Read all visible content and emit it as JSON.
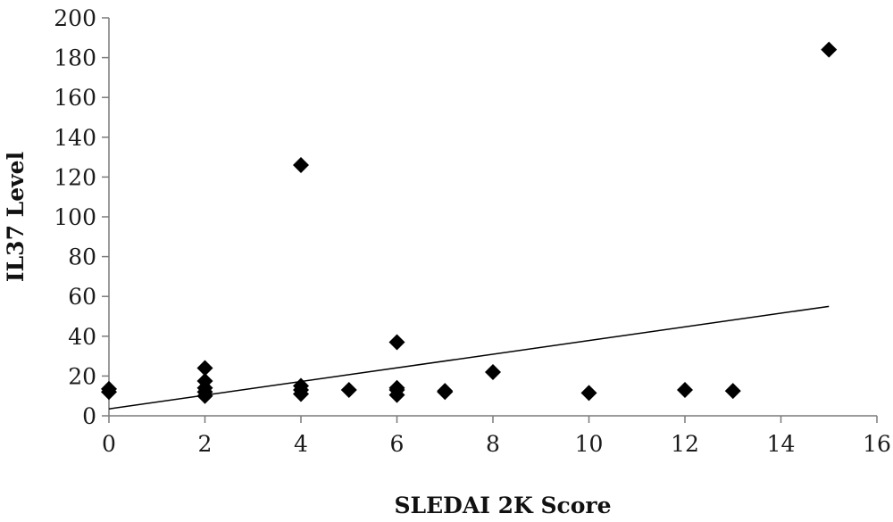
{
  "chart_data": {
    "type": "scatter",
    "title": "",
    "xlabel": "SLEDAI 2K Score",
    "ylabel": "IL37 Level",
    "xlim": [
      0,
      16
    ],
    "ylim": [
      0,
      200
    ],
    "x_ticks": [
      0,
      2,
      4,
      6,
      8,
      10,
      12,
      14,
      16
    ],
    "y_ticks": [
      0,
      20,
      40,
      60,
      80,
      100,
      120,
      140,
      160,
      180,
      200
    ],
    "grid": false,
    "legend": "none",
    "marker": "diamond",
    "marker_color": "#000000",
    "series": [
      {
        "points": [
          {
            "x": 0,
            "y": 12
          },
          {
            "x": 0,
            "y": 13.5
          },
          {
            "x": 2,
            "y": 10
          },
          {
            "x": 2,
            "y": 12
          },
          {
            "x": 2,
            "y": 14
          },
          {
            "x": 2,
            "y": 17.5
          },
          {
            "x": 2,
            "y": 24
          },
          {
            "x": 4,
            "y": 11
          },
          {
            "x": 4,
            "y": 13
          },
          {
            "x": 4,
            "y": 15
          },
          {
            "x": 4,
            "y": 126
          },
          {
            "x": 5,
            "y": 13
          },
          {
            "x": 6,
            "y": 10.5
          },
          {
            "x": 6,
            "y": 13
          },
          {
            "x": 6,
            "y": 14
          },
          {
            "x": 6,
            "y": 37
          },
          {
            "x": 7,
            "y": 12
          },
          {
            "x": 7,
            "y": 12.5
          },
          {
            "x": 8,
            "y": 22
          },
          {
            "x": 10,
            "y": 11.5
          },
          {
            "x": 12,
            "y": 13
          },
          {
            "x": 13,
            "y": 12.5
          },
          {
            "x": 15,
            "y": 184
          }
        ]
      }
    ],
    "trendline": {
      "type": "linear",
      "x_start": 0,
      "y_start": 3.5,
      "x_end": 15,
      "y_end": 55,
      "color": "#000000"
    }
  }
}
